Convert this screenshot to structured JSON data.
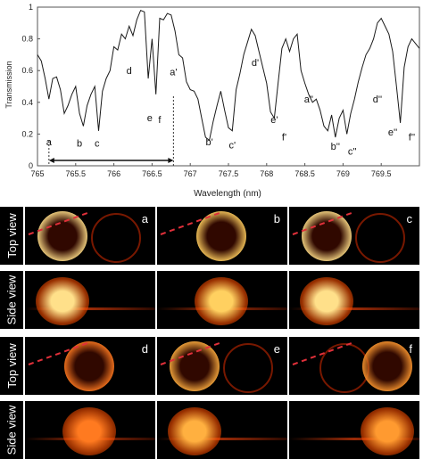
{
  "chart_data": {
    "type": "line",
    "ylabel": "Transmission",
    "xlabel": "Wavelength (nm)",
    "xlim": [
      765.0,
      770.0
    ],
    "ylim": [
      0,
      1
    ],
    "x_ticks": [
      "765",
      "765.5",
      "766",
      "766.5",
      "767",
      "767.5",
      "768",
      "768.5",
      "769",
      "769.5"
    ],
    "y_ticks": [
      "0",
      "0.2",
      "0.4",
      "0.6",
      "0.8",
      "1"
    ],
    "series": [
      {
        "x": [
          765.0,
          765.05,
          765.1,
          765.15,
          765.2,
          765.25,
          765.3,
          765.35,
          765.4,
          765.45,
          765.5,
          765.55,
          765.6,
          765.65,
          765.7,
          765.75,
          765.8,
          765.85,
          765.9,
          765.95,
          766.0,
          766.05,
          766.1,
          766.15,
          766.2,
          766.25,
          766.3,
          766.35,
          766.4,
          766.45,
          766.5,
          766.55,
          766.6,
          766.65,
          766.7,
          766.75,
          766.8,
          766.85,
          766.9,
          766.95,
          767.0,
          767.05,
          767.1,
          767.15,
          767.2,
          767.25,
          767.3,
          767.35,
          767.4,
          767.45,
          767.5,
          767.55,
          767.6,
          767.65,
          767.7,
          767.75,
          767.8,
          767.85,
          767.9,
          767.95,
          768.0,
          768.05,
          768.1,
          768.15,
          768.2,
          768.25,
          768.3,
          768.35,
          768.4,
          768.45,
          768.5,
          768.55,
          768.6,
          768.65,
          768.7,
          768.75,
          768.8,
          768.85,
          768.9,
          768.95,
          769.0,
          769.05,
          769.1,
          769.15,
          769.2,
          769.25,
          769.3,
          769.35,
          769.4,
          769.45,
          769.5,
          769.55,
          769.6,
          769.65,
          769.7,
          769.75,
          769.8,
          769.85,
          769.9,
          769.95,
          770.0
        ],
        "y": [
          0.7,
          0.66,
          0.55,
          0.42,
          0.55,
          0.56,
          0.48,
          0.33,
          0.38,
          0.45,
          0.5,
          0.33,
          0.25,
          0.38,
          0.45,
          0.5,
          0.22,
          0.47,
          0.55,
          0.6,
          0.75,
          0.73,
          0.83,
          0.8,
          0.88,
          0.82,
          0.92,
          0.98,
          0.97,
          0.55,
          0.8,
          0.45,
          0.93,
          0.92,
          0.96,
          0.95,
          0.85,
          0.7,
          0.68,
          0.53,
          0.48,
          0.47,
          0.42,
          0.3,
          0.18,
          0.16,
          0.28,
          0.38,
          0.47,
          0.35,
          0.24,
          0.22,
          0.48,
          0.58,
          0.7,
          0.78,
          0.86,
          0.82,
          0.72,
          0.62,
          0.52,
          0.34,
          0.3,
          0.52,
          0.74,
          0.8,
          0.72,
          0.8,
          0.83,
          0.6,
          0.52,
          0.45,
          0.4,
          0.42,
          0.35,
          0.25,
          0.22,
          0.32,
          0.18,
          0.3,
          0.35,
          0.2,
          0.33,
          0.42,
          0.53,
          0.62,
          0.7,
          0.74,
          0.8,
          0.9,
          0.93,
          0.88,
          0.83,
          0.72,
          0.5,
          0.27,
          0.62,
          0.75,
          0.8,
          0.77,
          0.74
        ]
      }
    ],
    "annotations": [
      {
        "label": "a",
        "x": 765.15,
        "y": 0.13
      },
      {
        "label": "b",
        "x": 765.55,
        "y": 0.12
      },
      {
        "label": "c",
        "x": 765.78,
        "y": 0.12
      },
      {
        "label": "d",
        "x": 766.2,
        "y": 0.58
      },
      {
        "label": "e",
        "x": 766.47,
        "y": 0.28
      },
      {
        "label": "f",
        "x": 766.6,
        "y": 0.27
      },
      {
        "label": "a'",
        "x": 766.78,
        "y": 0.57
      },
      {
        "label": "b'",
        "x": 767.25,
        "y": 0.13
      },
      {
        "label": "c'",
        "x": 767.55,
        "y": 0.11
      },
      {
        "label": "d'",
        "x": 767.85,
        "y": 0.63
      },
      {
        "label": "e'",
        "x": 768.1,
        "y": 0.27
      },
      {
        "label": "f'",
        "x": 768.23,
        "y": 0.16
      },
      {
        "label": "a''",
        "x": 768.55,
        "y": 0.4
      },
      {
        "label": "b''",
        "x": 768.9,
        "y": 0.1
      },
      {
        "label": "c''",
        "x": 769.12,
        "y": 0.07
      },
      {
        "label": "d''",
        "x": 769.45,
        "y": 0.4
      },
      {
        "label": "e''",
        "x": 769.65,
        "y": 0.19
      },
      {
        "label": "f''",
        "x": 769.9,
        "y": 0.16
      }
    ],
    "span_arrow": {
      "x_start": 765.15,
      "x_end": 766.78
    }
  },
  "image_grid": {
    "row_labels": [
      "Top view",
      "Side view",
      "Top view",
      "Side view"
    ],
    "panels": [
      "a",
      "b",
      "c",
      "d",
      "e",
      "f"
    ]
  }
}
